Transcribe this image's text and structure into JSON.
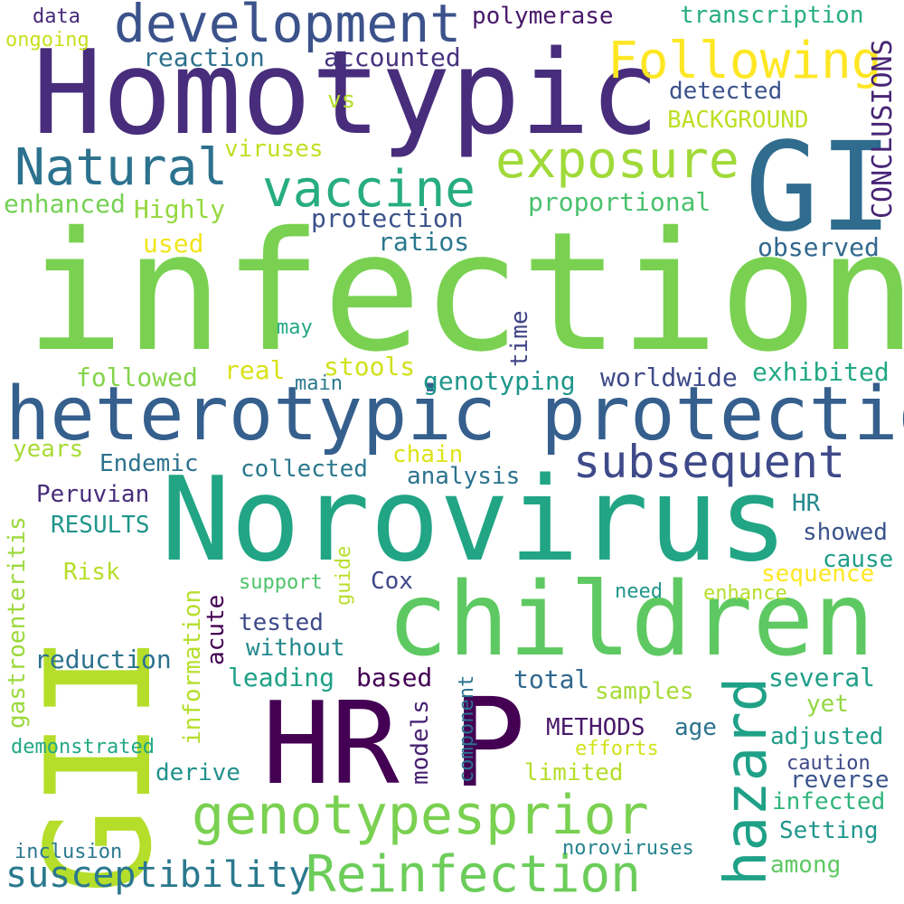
{
  "words": [
    {
      "text": "infection",
      "color": "#7ad151"
    },
    {
      "text": "Homotypic",
      "color": "#472d7b"
    },
    {
      "text": "Norovirus",
      "color": "#21a585"
    },
    {
      "text": "heterotypic protection",
      "color": "#355f8d"
    },
    {
      "text": "GII",
      "color": "#b5de2b"
    },
    {
      "text": "GI",
      "color": "#2f6c8e"
    },
    {
      "text": "HR",
      "color": "#440154"
    },
    {
      "text": "P",
      "color": "#440154"
    },
    {
      "text": "children",
      "color": "#5ec962"
    },
    {
      "text": "development",
      "color": "#3b528b"
    },
    {
      "text": "Following",
      "color": "#fde725"
    },
    {
      "text": "exposure",
      "color": "#a0da39"
    },
    {
      "text": "Natural",
      "color": "#2c728e"
    },
    {
      "text": "vaccine",
      "color": "#27ad81"
    },
    {
      "text": "genotypesprior",
      "color": "#7ad151"
    },
    {
      "text": "Reinfection",
      "color": "#6ccd5a"
    },
    {
      "text": "susceptibility",
      "color": "#2a788e"
    },
    {
      "text": "subsequent",
      "color": "#3e4a89"
    },
    {
      "text": "hazard",
      "color": "#1fa187"
    },
    {
      "text": "CONCLUSIONS",
      "color": "#482576"
    },
    {
      "text": "data",
      "color": "#482878"
    },
    {
      "text": "ongoing",
      "color": "#c8e020"
    },
    {
      "text": "polymerase",
      "color": "#48186a"
    },
    {
      "text": "transcription",
      "color": "#28ae80"
    },
    {
      "text": "reaction",
      "color": "#2d708e"
    },
    {
      "text": "accounted",
      "color": "#46337e"
    },
    {
      "text": "vs",
      "color": "#b5de2b"
    },
    {
      "text": "detected",
      "color": "#3b528b"
    },
    {
      "text": "BACKGROUND",
      "color": "#bddf26"
    },
    {
      "text": "viruses",
      "color": "#c2df23"
    },
    {
      "text": "enhanced",
      "color": "#75d054"
    },
    {
      "text": "Highly",
      "color": "#95d840"
    },
    {
      "text": "proportional",
      "color": "#4ac16d"
    },
    {
      "text": "protection",
      "color": "#3b528b"
    },
    {
      "text": "used",
      "color": "#f1e51d"
    },
    {
      "text": "ratios",
      "color": "#2a788e"
    },
    {
      "text": "observed",
      "color": "#31688e"
    },
    {
      "text": "may",
      "color": "#22a884"
    },
    {
      "text": "time",
      "color": "#414487"
    },
    {
      "text": "followed",
      "color": "#84d44b"
    },
    {
      "text": "real",
      "color": "#d8e219"
    },
    {
      "text": "stools",
      "color": "#d0e11c"
    },
    {
      "text": "main",
      "color": "#2a788e"
    },
    {
      "text": "genotyping",
      "color": "#1f968b"
    },
    {
      "text": "worldwide",
      "color": "#3e4a89"
    },
    {
      "text": "exhibited",
      "color": "#22a884"
    },
    {
      "text": "years",
      "color": "#a8db34"
    },
    {
      "text": "Endemic",
      "color": "#2c728e"
    },
    {
      "text": "chain",
      "color": "#dde318"
    },
    {
      "text": "collected",
      "color": "#2a788e"
    },
    {
      "text": "analysis",
      "color": "#2c728e"
    },
    {
      "text": "gastroenteritis",
      "color": "#9bd93c"
    },
    {
      "text": "Peruvian",
      "color": "#472c7a"
    },
    {
      "text": "HR",
      "color": "#23898e"
    },
    {
      "text": "RESULTS",
      "color": "#1f958b"
    },
    {
      "text": "showed",
      "color": "#3a548c"
    },
    {
      "text": "cause",
      "color": "#1f9e89"
    },
    {
      "text": "guide",
      "color": "#b8de29"
    },
    {
      "text": "sequence",
      "color": "#fde725"
    },
    {
      "text": "Risk",
      "color": "#b8de29"
    },
    {
      "text": "support",
      "color": "#4ec36b"
    },
    {
      "text": "Cox",
      "color": "#3f4788"
    },
    {
      "text": "information",
      "color": "#b5de2b"
    },
    {
      "text": "need",
      "color": "#1f968b"
    },
    {
      "text": "enhance",
      "color": "#b5de2b"
    },
    {
      "text": "acute",
      "color": "#440154"
    },
    {
      "text": "tested",
      "color": "#3e4a89"
    },
    {
      "text": "without",
      "color": "#23898e"
    },
    {
      "text": "reduction",
      "color": "#2c728e"
    },
    {
      "text": "leading",
      "color": "#1fa187"
    },
    {
      "text": "based",
      "color": "#440154"
    },
    {
      "text": "component",
      "color": "#2c728e"
    },
    {
      "text": "total",
      "color": "#31688e"
    },
    {
      "text": "several",
      "color": "#1f9e89"
    },
    {
      "text": "models",
      "color": "#482173"
    },
    {
      "text": "samples",
      "color": "#a5db36"
    },
    {
      "text": "yet",
      "color": "#93d741"
    },
    {
      "text": "METHODS",
      "color": "#48186a"
    },
    {
      "text": "age",
      "color": "#2c728e"
    },
    {
      "text": "adjusted",
      "color": "#1f9e89"
    },
    {
      "text": "demonstrated",
      "color": "#22a884"
    },
    {
      "text": "efforts",
      "color": "#d2e21b"
    },
    {
      "text": "caution",
      "color": "#3e4989"
    },
    {
      "text": "derive",
      "color": "#21918c"
    },
    {
      "text": "limited",
      "color": "#b5de2b"
    },
    {
      "text": "reverse",
      "color": "#3a548c"
    },
    {
      "text": "infected",
      "color": "#31b57b"
    },
    {
      "text": "Setting",
      "color": "#1f968b"
    },
    {
      "text": "inclusion",
      "color": "#2a788e"
    },
    {
      "text": "noroviruses",
      "color": "#25848e"
    },
    {
      "text": "among",
      "color": "#5ec962"
    }
  ]
}
